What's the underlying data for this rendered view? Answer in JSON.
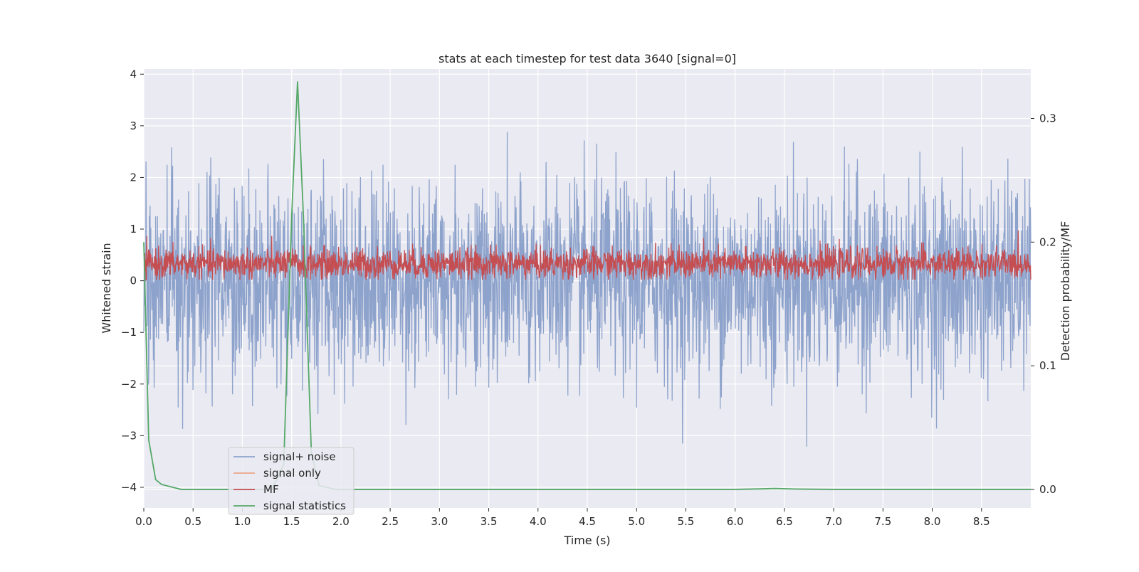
{
  "chart_data": {
    "type": "line",
    "title": "stats at each timestep for test data 3640 [signal=0]",
    "xlabel": "Time (s)",
    "ylabel": "Whitened strain",
    "y2label": "Detection probability/MF",
    "xlim": [
      0.0,
      9.0
    ],
    "ylim": [
      -4.4,
      4.1
    ],
    "y2lim": [
      -0.015,
      0.34
    ],
    "xticks": [
      "0.0",
      "0.5",
      "1.0",
      "1.5",
      "2.0",
      "2.5",
      "3.0",
      "3.5",
      "4.0",
      "4.5",
      "5.0",
      "5.5",
      "6.0",
      "6.5",
      "7.0",
      "7.5",
      "8.0",
      "8.5"
    ],
    "yticks": [
      "4",
      "3",
      "2",
      "1",
      "0",
      "−1",
      "−2",
      "−3",
      "−4"
    ],
    "y2ticks": [
      "0.3",
      "0.2",
      "0.1",
      "0.0"
    ],
    "grid": true,
    "legend_position": "lower-left",
    "colors": {
      "background": "#eaeaf2",
      "grid": "#ffffff",
      "noise": "#8ea3cc",
      "signal_only": "#eda68a",
      "mf": "#c44e52",
      "stats": "#55a868"
    },
    "series": [
      {
        "name": "signal+ noise",
        "axis": "left",
        "description": "whitened strain, approx. Gaussian noise, mean ~0, std ~0.95, sampled densely over 0-9 s",
        "mean": 0.0,
        "std": 0.95,
        "n_points": 2400
      },
      {
        "name": "signal only",
        "axis": "left",
        "values": []
      },
      {
        "name": "MF",
        "axis": "left",
        "description": "matched-filter output, approx. 0.1-0.8 band",
        "mean": 0.33,
        "std": 0.15,
        "n_points": 2400
      },
      {
        "name": "signal statistics",
        "axis": "right",
        "x": [
          0.0,
          0.05,
          0.12,
          0.18,
          0.38,
          0.6,
          1.0,
          1.3,
          1.42,
          1.5,
          1.56,
          1.62,
          1.7,
          1.78,
          1.95,
          2.5,
          4.0,
          6.0,
          6.3,
          6.4,
          6.6,
          7.0,
          8.0,
          9.0
        ],
        "y": [
          0.2,
          0.04,
          0.008,
          0.004,
          0.0,
          0.0,
          0.0,
          0.0,
          0.02,
          0.22,
          0.33,
          0.22,
          0.03,
          0.003,
          0.0,
          0.0,
          0.0,
          0.0,
          0.0005,
          0.0008,
          0.0003,
          0.0,
          0.0,
          0.0
        ]
      }
    ],
    "legend": [
      "signal+ noise",
      "signal only",
      "MF",
      "signal statistics"
    ]
  }
}
